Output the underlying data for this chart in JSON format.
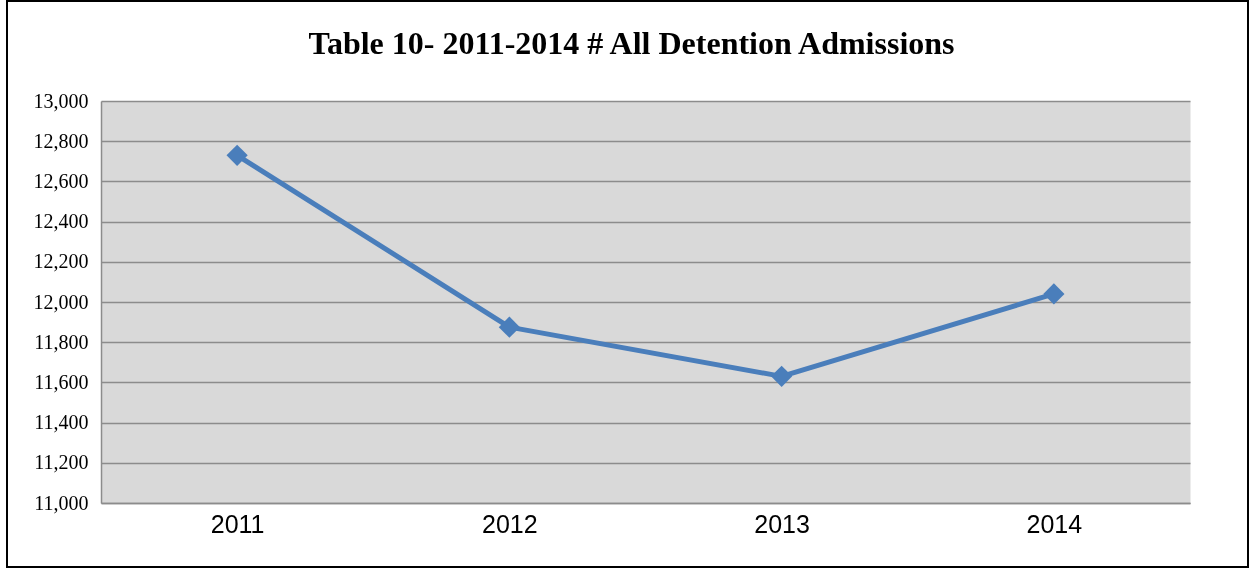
{
  "chart_data": {
    "type": "line",
    "title": "Table 10- 2011-2014 # All Detention Admissions",
    "categories": [
      "2011",
      "2012",
      "2013",
      "2014"
    ],
    "series": [
      {
        "color": "#4a7ebb",
        "values": [
          12730,
          11875,
          11630,
          12040
        ]
      }
    ],
    "ylim": [
      11000,
      13000
    ],
    "yticks": [
      {
        "value": 11000,
        "label": "11,000"
      },
      {
        "value": 11200,
        "label": "11,200"
      },
      {
        "value": 11400,
        "label": "11,400"
      },
      {
        "value": 11600,
        "label": "11,600"
      },
      {
        "value": 11800,
        "label": "11,800"
      },
      {
        "value": 12000,
        "label": "12,000"
      },
      {
        "value": 12200,
        "label": "12,200"
      },
      {
        "value": 12400,
        "label": "12,400"
      },
      {
        "value": 12600,
        "label": "12,600"
      },
      {
        "value": 12800,
        "label": "12,800"
      },
      {
        "value": 13000,
        "label": "13,000"
      }
    ],
    "grid": "y",
    "marker": "diamond",
    "line_style": "solid"
  }
}
